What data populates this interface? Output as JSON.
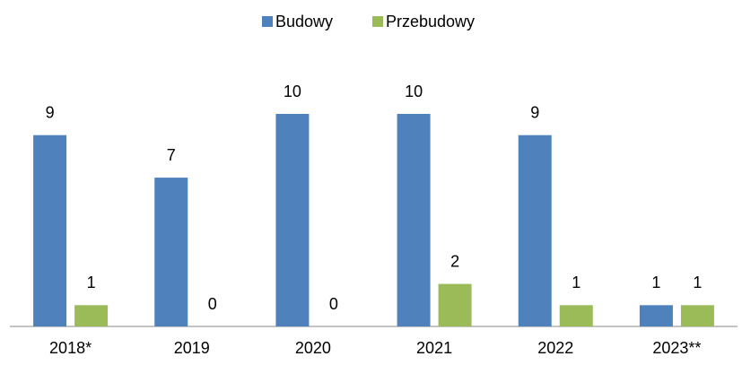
{
  "chart_data": {
    "type": "bar",
    "categories": [
      "2018*",
      "2019",
      "2020",
      "2021",
      "2022",
      "2023**"
    ],
    "series": [
      {
        "name": "Budowy",
        "color": "#4f81bd",
        "values": [
          9,
          7,
          10,
          10,
          9,
          1
        ]
      },
      {
        "name": "Przebudowy",
        "color": "#9bbb59",
        "values": [
          1,
          0,
          0,
          2,
          1,
          1
        ]
      }
    ],
    "ylim": [
      0,
      10
    ],
    "legend": "top"
  }
}
